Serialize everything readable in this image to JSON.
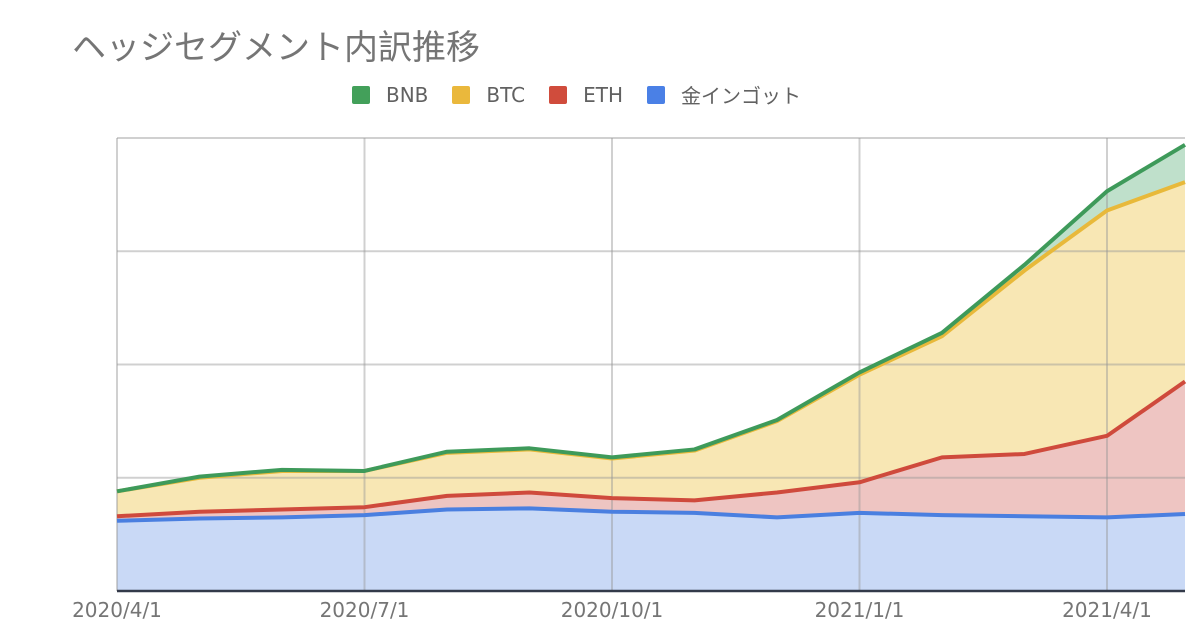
{
  "chart_data": {
    "type": "area",
    "stacked": true,
    "title": "ヘッジセグメント内訳推移",
    "xlabel": "",
    "ylabel": "",
    "y_unit_note": "no y-axis tick labels shown; values in relative gridline units (1 unit = 1 gridline step)",
    "ylim": [
      0,
      4
    ],
    "grid": true,
    "legend_position": "top",
    "x": [
      "2020/4/1",
      "2020/5/1",
      "2020/6/1",
      "2020/7/1",
      "2020/8/1",
      "2020/9/1",
      "2020/10/1",
      "2020/11/1",
      "2020/12/1",
      "2021/1/1",
      "2021/2/1",
      "2021/3/1",
      "2021/4/1",
      "2021/5/1"
    ],
    "x_tick_labels": [
      "2020/4/1",
      "2020/7/1",
      "2020/10/1",
      "2021/1/1",
      "2021/4/1"
    ],
    "series": [
      {
        "name": "金インゴット",
        "color": "#4a7fe0",
        "values": [
          0.62,
          0.64,
          0.65,
          0.67,
          0.72,
          0.73,
          0.7,
          0.69,
          0.65,
          0.69,
          0.67,
          0.66,
          0.65,
          0.68
        ]
      },
      {
        "name": "ETH",
        "color": "#cf4a3c",
        "values": [
          0.04,
          0.06,
          0.07,
          0.07,
          0.12,
          0.14,
          0.12,
          0.11,
          0.22,
          0.27,
          0.51,
          0.55,
          0.72,
          1.17
        ]
      },
      {
        "name": "BTC",
        "color": "#e8b93a",
        "values": [
          0.22,
          0.3,
          0.34,
          0.32,
          0.38,
          0.38,
          0.35,
          0.44,
          0.63,
          0.95,
          1.07,
          1.62,
          1.99,
          1.76
        ]
      },
      {
        "name": "BNB",
        "color": "#3e9a5a",
        "values": [
          0.0,
          0.01,
          0.01,
          0.0,
          0.01,
          0.01,
          0.01,
          0.01,
          0.01,
          0.02,
          0.03,
          0.05,
          0.17,
          0.33
        ]
      }
    ]
  },
  "legend": [
    {
      "label": "BNB",
      "color": "#43a05a"
    },
    {
      "label": "BTC",
      "color": "#eab83c"
    },
    {
      "label": "ETH",
      "color": "#d04c3c"
    },
    {
      "label": "金インゴット",
      "color": "#4a80e6"
    }
  ]
}
